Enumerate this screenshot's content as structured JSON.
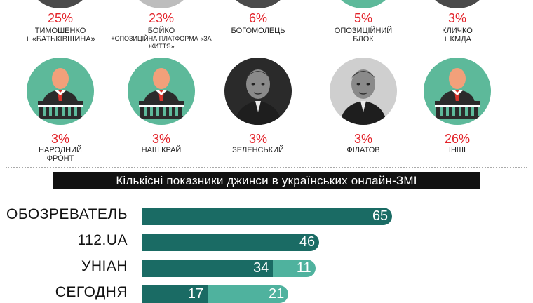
{
  "top_row": [
    {
      "pct": "25%",
      "label1": "Тимошенко",
      "label2": "+ «Батьківщина»",
      "small": false,
      "style": "photo-dark"
    },
    {
      "pct": "23%",
      "label1": "Бойко",
      "label2": "+Опозиційна платформа «За життя»",
      "small": true,
      "style": "photo-light"
    },
    {
      "pct": "6%",
      "label1": "Богомолець",
      "label2": "",
      "small": false,
      "style": "photo-dark"
    },
    {
      "pct": "5%",
      "label1": "Опозиційний",
      "label2": "блок",
      "small": false,
      "style": "green"
    },
    {
      "pct": "3%",
      "label1": "Кличко",
      "label2": "+ КМДА",
      "small": false,
      "style": "photo-dark"
    }
  ],
  "bottom_row": [
    {
      "pct": "3%",
      "label1": "Народний",
      "label2": "фронт",
      "icon": "politician-icon"
    },
    {
      "pct": "3%",
      "label1": "Наш край",
      "label2": "",
      "icon": "politician-icon"
    },
    {
      "pct": "3%",
      "label1": "Зеленський",
      "label2": "",
      "icon": "portrait-icon"
    },
    {
      "pct": "3%",
      "label1": "Філатов",
      "label2": "",
      "icon": "portrait-icon"
    },
    {
      "pct": "26%",
      "label1": "Інші",
      "label2": "",
      "icon": "politician-icon"
    }
  ],
  "colors": {
    "accent_red": "#e3242b",
    "green_circle": "#5db99a",
    "bar_dark": "#1a6b64",
    "bar_light": "#4fb29e"
  },
  "chart_data": {
    "type": "bar",
    "title": "Кількісні показники джинси в українських онлайн-ЗМІ",
    "categories": [
      "Обозреватель",
      "112.ua",
      "УНІАН",
      "Сегодня"
    ],
    "series": [
      {
        "values": [
          65,
          46,
          34,
          17
        ]
      },
      {
        "values": [
          0,
          0,
          11,
          21
        ]
      }
    ]
  }
}
